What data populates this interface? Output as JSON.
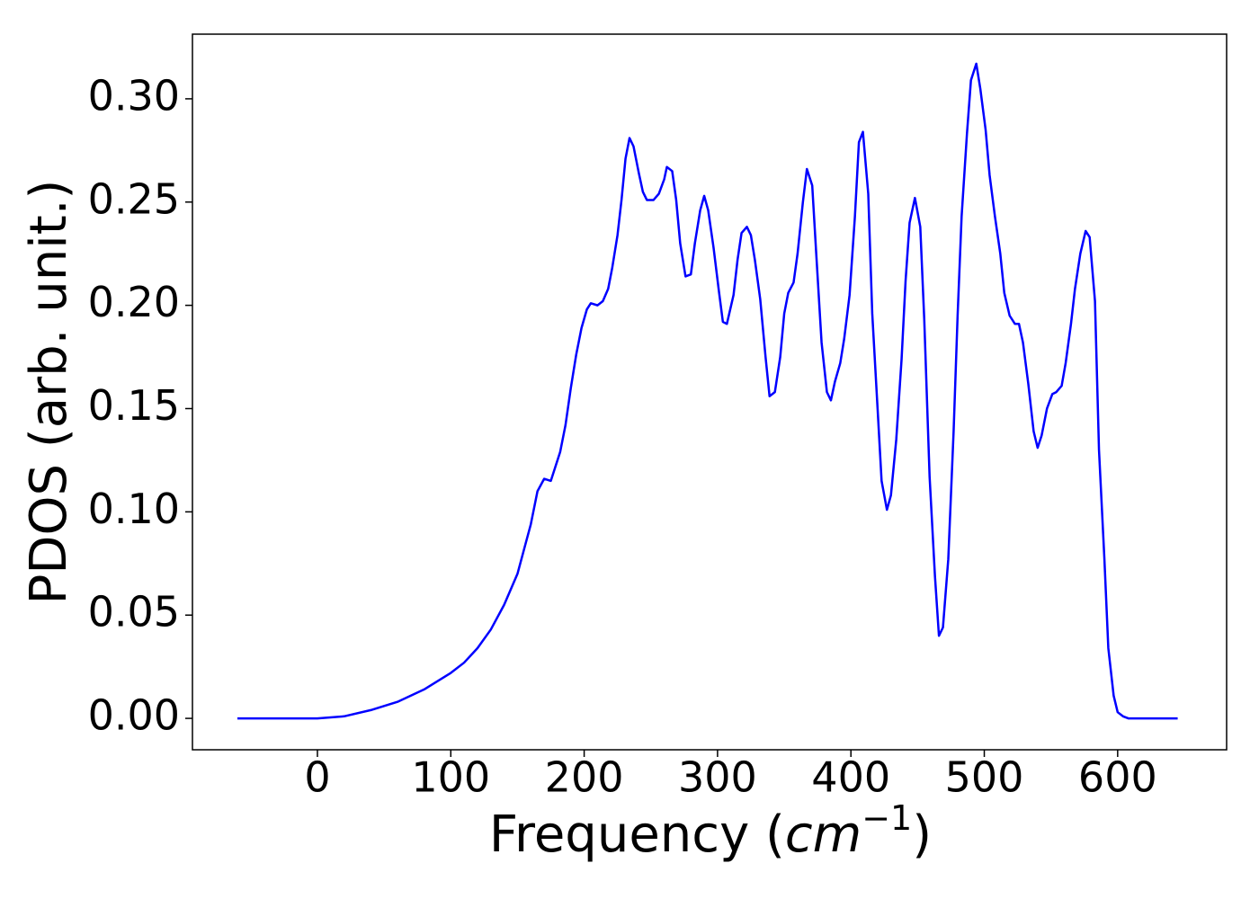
{
  "chart_data": {
    "type": "line",
    "xlabel": [
      "Frequency (",
      "cm",
      "−1",
      ")"
    ],
    "ylabel": "PDOS (arb. unit.)",
    "xlim": [
      -93.7,
      681.7
    ],
    "ylim": [
      -0.0152,
      0.3313
    ],
    "xticks": [
      0,
      100,
      200,
      300,
      400,
      500,
      600
    ],
    "yticks": [
      {
        "value": 0,
        "label": "0.00"
      },
      {
        "value": 0.05,
        "label": "0.05"
      },
      {
        "value": 0.1,
        "label": "0.10"
      },
      {
        "value": 0.15,
        "label": "0.15"
      },
      {
        "value": 0.2,
        "label": "0.20"
      },
      {
        "value": 0.25,
        "label": "0.25"
      },
      {
        "value": 0.3,
        "label": "0.30"
      }
    ],
    "series": [
      {
        "color": "#0000ff",
        "x": [
          -60,
          -40,
          -20,
          0,
          20,
          40,
          60,
          80,
          100,
          110,
          120,
          130,
          140,
          150,
          155,
          160,
          165,
          170,
          175,
          178,
          182,
          186,
          190,
          194,
          198,
          202,
          205,
          210,
          214,
          218,
          221,
          225,
          228,
          231,
          234,
          237,
          241,
          244,
          247,
          252,
          256,
          260,
          262,
          266,
          269,
          272,
          276,
          280,
          283,
          287,
          290,
          293,
          297,
          301,
          304,
          307,
          312,
          315,
          318,
          322,
          325,
          328,
          332,
          336,
          339,
          343,
          347,
          350,
          353,
          357,
          360,
          364,
          367,
          371,
          374,
          378,
          382,
          385,
          388,
          392,
          395,
          399,
          403,
          406,
          409,
          413,
          416,
          420,
          423,
          427,
          430,
          434,
          438,
          441,
          444,
          448,
          452,
          455,
          459,
          463,
          466,
          469,
          473,
          477,
          480,
          483,
          487,
          490,
          494,
          497,
          501,
          504,
          508,
          512,
          515,
          519,
          523,
          526,
          529,
          533,
          537,
          540,
          543,
          547,
          551,
          554,
          558,
          561,
          565,
          568,
          572,
          576,
          579,
          583,
          586,
          590,
          593,
          597,
          600,
          604,
          608,
          620,
          645
        ],
        "values": [
          0,
          0,
          0,
          0,
          0.001,
          0.004,
          0.008,
          0.014,
          0.022,
          0.027,
          0.034,
          0.043,
          0.055,
          0.07,
          0.082,
          0.094,
          0.11,
          0.116,
          0.115,
          0.121,
          0.129,
          0.142,
          0.16,
          0.176,
          0.189,
          0.198,
          0.201,
          0.2,
          0.202,
          0.208,
          0.218,
          0.234,
          0.251,
          0.271,
          0.281,
          0.277,
          0.264,
          0.255,
          0.251,
          0.251,
          0.254,
          0.261,
          0.267,
          0.265,
          0.251,
          0.23,
          0.214,
          0.215,
          0.23,
          0.246,
          0.253,
          0.246,
          0.228,
          0.207,
          0.192,
          0.191,
          0.205,
          0.222,
          0.235,
          0.238,
          0.234,
          0.222,
          0.203,
          0.175,
          0.156,
          0.158,
          0.175,
          0.196,
          0.206,
          0.211,
          0.225,
          0.25,
          0.266,
          0.258,
          0.225,
          0.182,
          0.158,
          0.154,
          0.163,
          0.172,
          0.184,
          0.205,
          0.243,
          0.279,
          0.284,
          0.254,
          0.196,
          0.15,
          0.115,
          0.101,
          0.108,
          0.135,
          0.174,
          0.212,
          0.24,
          0.252,
          0.238,
          0.193,
          0.117,
          0.069,
          0.04,
          0.044,
          0.077,
          0.139,
          0.195,
          0.243,
          0.283,
          0.309,
          0.317,
          0.305,
          0.285,
          0.263,
          0.243,
          0.225,
          0.206,
          0.195,
          0.191,
          0.191,
          0.182,
          0.162,
          0.139,
          0.131,
          0.137,
          0.15,
          0.157,
          0.158,
          0.161,
          0.172,
          0.191,
          0.208,
          0.225,
          0.236,
          0.233,
          0.202,
          0.13,
          0.078,
          0.034,
          0.011,
          0.003,
          0.001,
          0,
          0,
          0
        ]
      }
    ]
  }
}
